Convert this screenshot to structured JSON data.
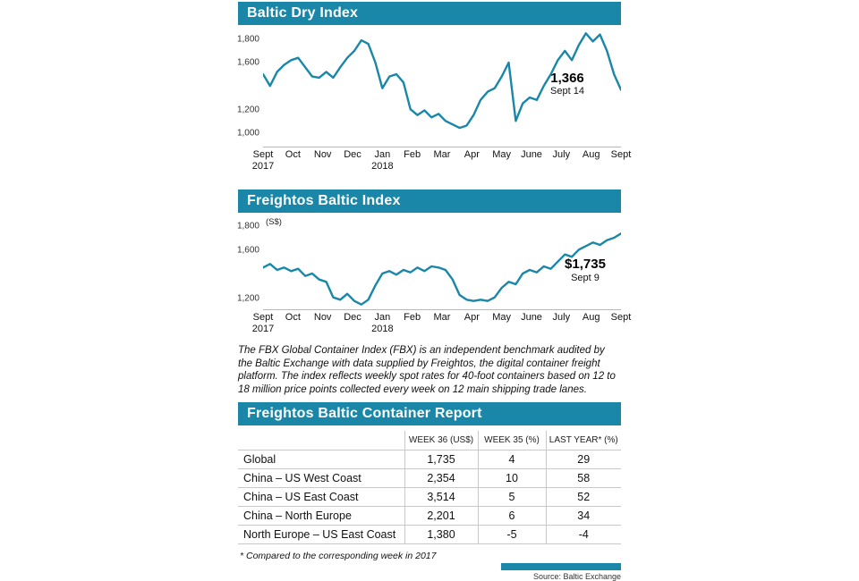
{
  "colors": {
    "teal": "#1a87a8",
    "line": "#1a87a8"
  },
  "chart_data": [
    {
      "type": "line",
      "title": "Baltic Dry Index",
      "unit": "",
      "x_labels": [
        "Sept\n2017",
        "Oct",
        "Nov",
        "Dec",
        "Jan\n2018",
        "Feb",
        "Mar",
        "Apr",
        "May",
        "June",
        "July",
        "Aug",
        "Sept"
      ],
      "values": [
        1500,
        1400,
        1520,
        1580,
        1620,
        1640,
        1560,
        1480,
        1470,
        1520,
        1470,
        1560,
        1640,
        1700,
        1790,
        1760,
        1600,
        1380,
        1480,
        1500,
        1430,
        1200,
        1150,
        1190,
        1130,
        1160,
        1100,
        1070,
        1040,
        1060,
        1150,
        1280,
        1350,
        1380,
        1480,
        1600,
        1100,
        1250,
        1300,
        1280,
        1400,
        1500,
        1620,
        1700,
        1620,
        1750,
        1850,
        1780,
        1840,
        1700,
        1500,
        1366
      ],
      "ylim": [
        880,
        1860
      ],
      "yticks": [
        {
          "value": 1800,
          "label": "1,800"
        },
        {
          "value": 1600,
          "label": "1,600"
        },
        {
          "value": 1200,
          "label": "1,200"
        },
        {
          "value": 1000,
          "label": "1,000"
        }
      ],
      "annotation": {
        "value_label": "1,366",
        "date_label": "Sept 14"
      },
      "line_color": "#1a87a8",
      "grid": false,
      "legend": "none"
    },
    {
      "type": "line",
      "title": "Freightos Baltic Index",
      "unit": "(S$)",
      "x_labels": [
        "Sept\n2017",
        "Oct",
        "Nov",
        "Dec",
        "Jan\n2018",
        "Feb",
        "Mar",
        "Apr",
        "May",
        "June",
        "July",
        "Aug",
        "Sept"
      ],
      "values": [
        1450,
        1480,
        1430,
        1450,
        1420,
        1440,
        1380,
        1400,
        1350,
        1330,
        1200,
        1180,
        1230,
        1170,
        1140,
        1180,
        1300,
        1400,
        1420,
        1390,
        1430,
        1410,
        1450,
        1420,
        1460,
        1450,
        1430,
        1350,
        1220,
        1180,
        1170,
        1180,
        1170,
        1200,
        1280,
        1330,
        1310,
        1400,
        1430,
        1410,
        1460,
        1440,
        1500,
        1560,
        1540,
        1600,
        1630,
        1660,
        1640,
        1680,
        1700,
        1735
      ],
      "ylim": [
        1100,
        1850
      ],
      "yticks": [
        {
          "value": 1800,
          "label": "1,800"
        },
        {
          "value": 1600,
          "label": "1,600"
        },
        {
          "value": 1200,
          "label": "1,200"
        }
      ],
      "annotation": {
        "value_label": "$1,735",
        "date_label": "Sept 9"
      },
      "line_color": "#1a87a8",
      "grid": false,
      "legend": "none"
    }
  ],
  "fbx_note": "The FBX Global Container Index (FBX) is an independent benchmark audited by the Baltic Exchange with data supplied by Freightos, the digital container freight platform. The index reflects weekly spot rates for 40-foot containers based on 12 to 18 million price points collected every week on 12 main shipping trade lanes.",
  "table": {
    "title": "Freightos Baltic Container Report",
    "columns": [
      "",
      "WEEK 36 (US$)",
      "WEEK 35 (%)",
      "LAST YEAR* (%)"
    ],
    "rows": [
      [
        "Global",
        "1,735",
        "4",
        "29"
      ],
      [
        "China – US West Coast",
        "2,354",
        "10",
        "58"
      ],
      [
        "China – US East Coast",
        "3,514",
        "5",
        "52"
      ],
      [
        "China – North Europe",
        "2,201",
        "6",
        "34"
      ],
      [
        "North Europe – US East Coast",
        "1,380",
        "-5",
        "-4"
      ]
    ],
    "footnote": "* Compared to the corresponding week in 2017"
  },
  "source": "Source: Baltic Exchange"
}
